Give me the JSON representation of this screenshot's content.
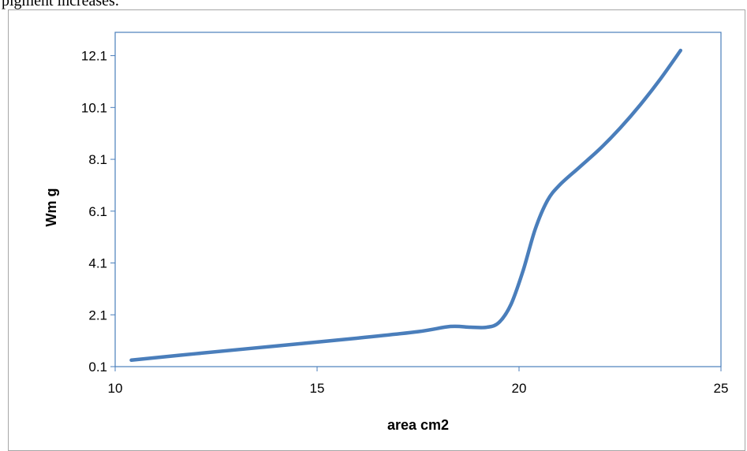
{
  "page": {
    "top_text": "pigment increases."
  },
  "chart_data": {
    "type": "line",
    "title": "",
    "xlabel": "area cm2",
    "ylabel": "Wm g",
    "xlim": [
      10,
      25
    ],
    "ylim": [
      0.1,
      13.0
    ],
    "x_ticks": [
      10,
      15,
      20,
      25
    ],
    "y_ticks": [
      0.1,
      2.1,
      4.1,
      6.1,
      8.1,
      10.1,
      12.1
    ],
    "x_tick_labels": [
      "10",
      "15",
      "20",
      "25"
    ],
    "y_tick_labels": [
      "0.1",
      "2.1",
      "4.1",
      "6.1",
      "8.1",
      "10.1",
      "12.1"
    ],
    "grid": false,
    "legend": "none",
    "series": [
      {
        "color": "#4a7ebb",
        "x": [
          10.4,
          12.0,
          14.0,
          16.0,
          17.5,
          18.3,
          18.8,
          19.2,
          19.5,
          19.8,
          20.1,
          20.4,
          20.7,
          21.0,
          21.5,
          22.0,
          22.5,
          23.0,
          23.5,
          24.0
        ],
        "y": [
          0.35,
          0.6,
          0.9,
          1.2,
          1.45,
          1.65,
          1.62,
          1.62,
          1.8,
          2.5,
          3.8,
          5.4,
          6.5,
          7.1,
          7.8,
          8.5,
          9.3,
          10.2,
          11.2,
          12.3
        ]
      }
    ]
  },
  "style": {
    "plot_border_color": "#4a7ebb",
    "frame_border_color": "#a6a6a6"
  }
}
